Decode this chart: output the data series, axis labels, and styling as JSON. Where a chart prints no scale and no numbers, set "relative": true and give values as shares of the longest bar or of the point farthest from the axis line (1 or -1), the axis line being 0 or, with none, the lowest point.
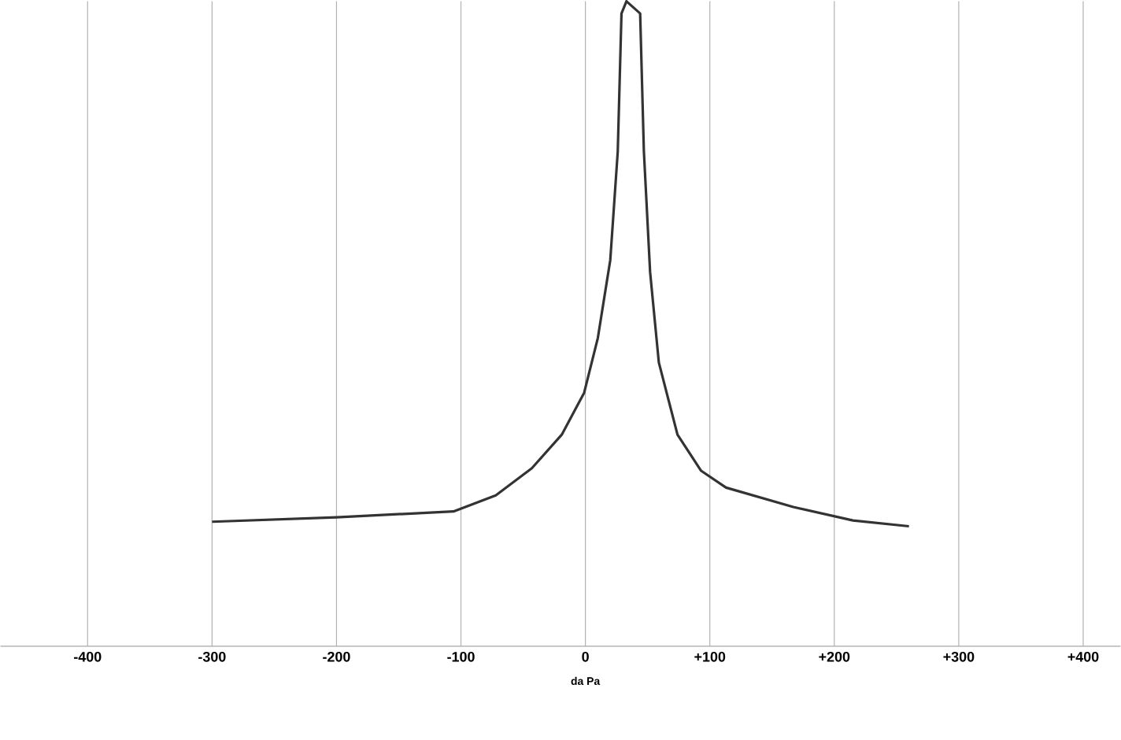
{
  "chart_data": {
    "type": "line",
    "xlabel": "da Pa",
    "relative": true,
    "x": [
      -300,
      -200,
      -106,
      -72,
      -43,
      -19,
      -1,
      10,
      20,
      26,
      29,
      33,
      44,
      47,
      52,
      59,
      74,
      93,
      113,
      167,
      215,
      260
    ],
    "values": [
      0.193,
      0.2,
      0.209,
      0.234,
      0.276,
      0.328,
      0.393,
      0.478,
      0.599,
      0.767,
      0.981,
      1,
      0.981,
      0.767,
      0.58,
      0.44,
      0.328,
      0.272,
      0.246,
      0.216,
      0.195,
      0.186
    ],
    "color": "#333333",
    "marker": "none",
    "line_style": "solid",
    "grid": "x",
    "xlim": [
      -470,
      430
    ],
    "xticks": [
      -400,
      -300,
      -200,
      -100,
      0,
      {
        "value": 100,
        "label": "+100"
      },
      {
        "value": 200,
        "label": "+200"
      },
      {
        "value": 300,
        "label": "+300"
      },
      {
        "value": 400,
        "label": "+400"
      }
    ]
  }
}
